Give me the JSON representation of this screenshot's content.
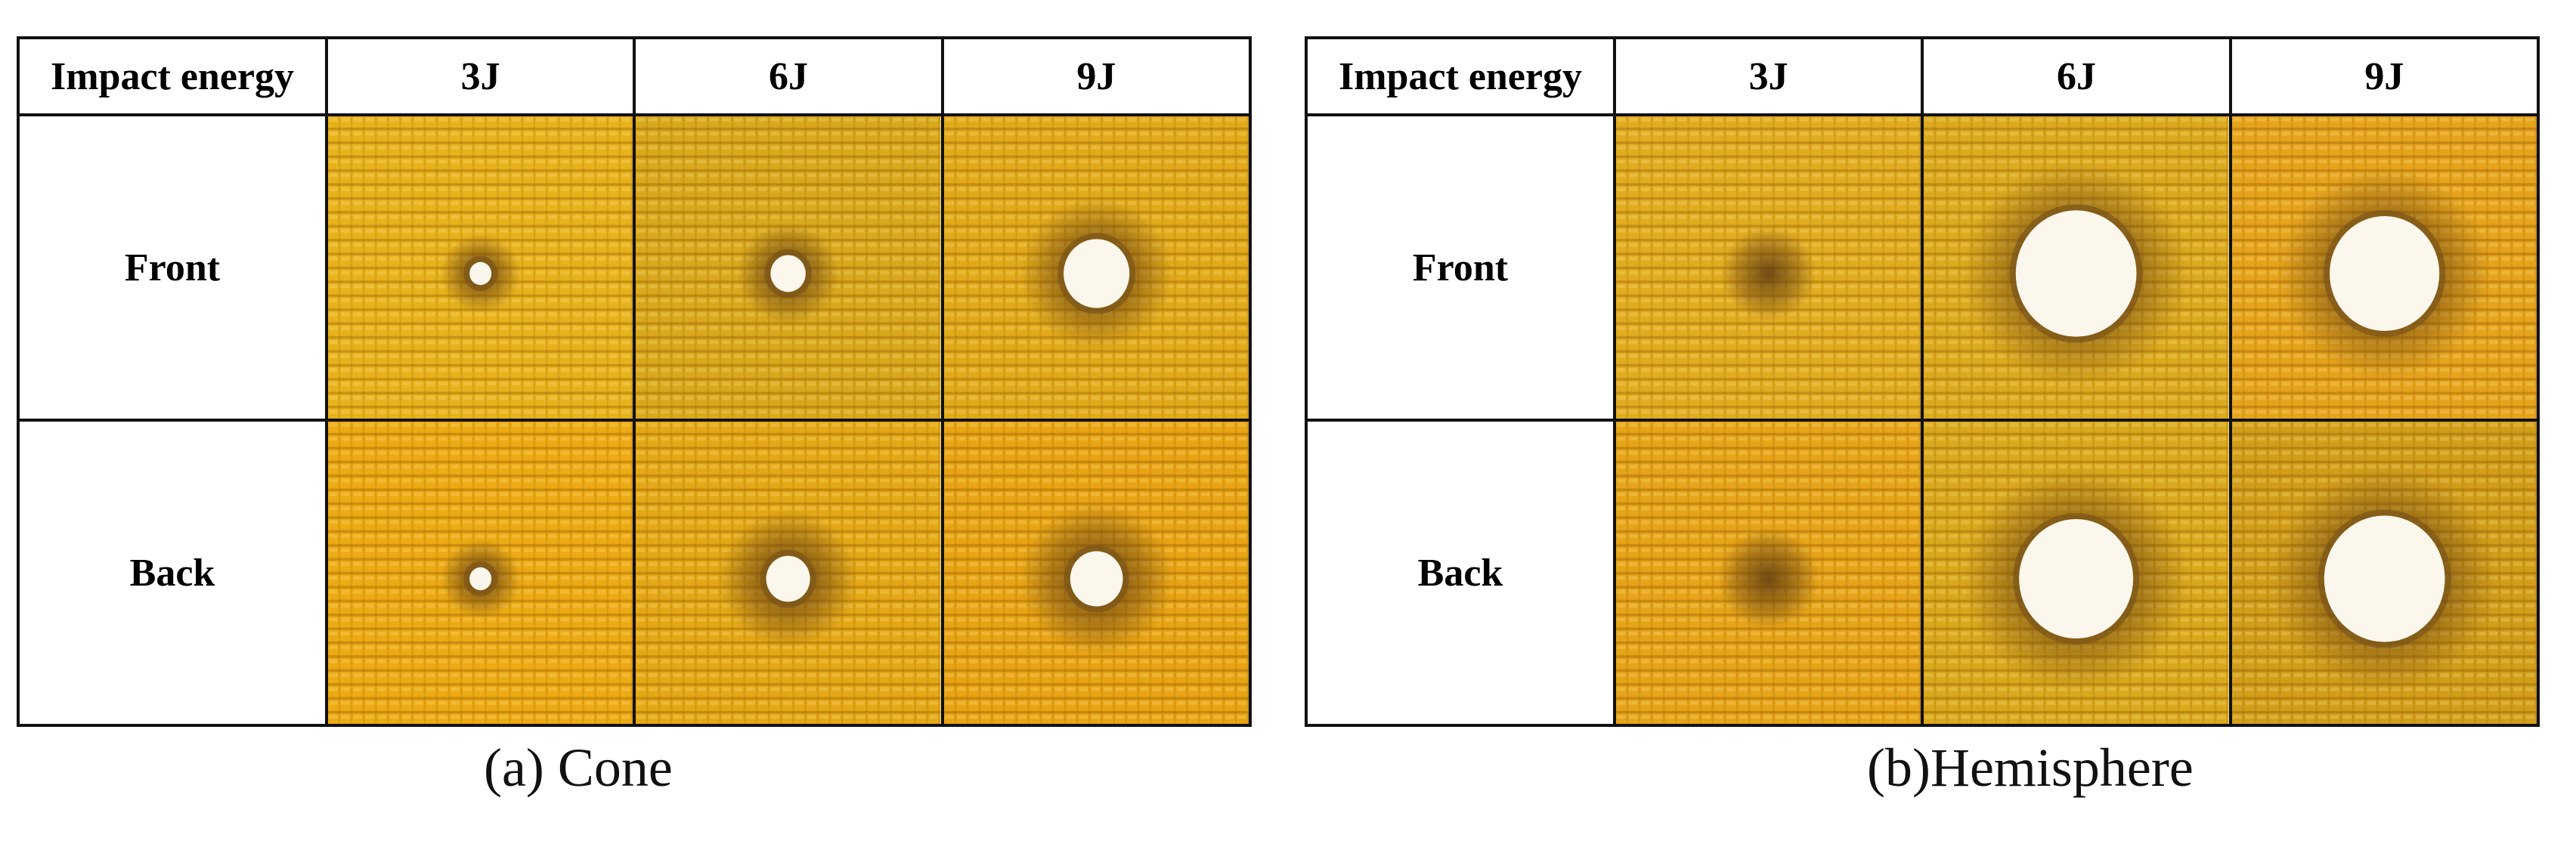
{
  "panels": [
    {
      "header": {
        "label": "Impact energy",
        "columns": [
          "3J",
          "6J",
          "9J"
        ]
      },
      "rows": [
        "Front",
        "Back"
      ],
      "caption": "(a) Cone",
      "damage": [
        [
          {
            "hole": 0.1,
            "dark": 0.22
          },
          {
            "hole": 0.16,
            "dark": 0.28
          },
          {
            "hole": 0.3,
            "dark": 0.42
          }
        ],
        [
          {
            "hole": 0.1,
            "dark": 0.22
          },
          {
            "hole": 0.2,
            "dark": 0.38
          },
          {
            "hole": 0.24,
            "dark": 0.42
          }
        ]
      ],
      "tint": [
        [
          "#e8b21c",
          "#d9a81c",
          "#e2aa1a"
        ],
        [
          "#ecaa14",
          "#e4a816",
          "#e8a414"
        ]
      ]
    },
    {
      "header": {
        "label": "Impact energy",
        "columns": [
          "3J",
          "6J",
          "9J"
        ]
      },
      "rows": [
        "Front",
        "Back"
      ],
      "caption": "(b)Hemisphere",
      "damage": [
        [
          {
            "hole": 0.0,
            "dark": 0.26
          },
          {
            "hole": 0.55,
            "dark": 0.62
          },
          {
            "hole": 0.5,
            "dark": 0.58
          }
        ],
        [
          {
            "hole": 0.0,
            "dark": 0.28
          },
          {
            "hole": 0.52,
            "dark": 0.62
          },
          {
            "hole": 0.55,
            "dark": 0.62
          }
        ]
      ],
      "tint": [
        [
          "#e2ac20",
          "#dcaa1e",
          "#e6a41c"
        ],
        [
          "#e6a418",
          "#daa81c",
          "#d29e1a"
        ]
      ]
    }
  ]
}
